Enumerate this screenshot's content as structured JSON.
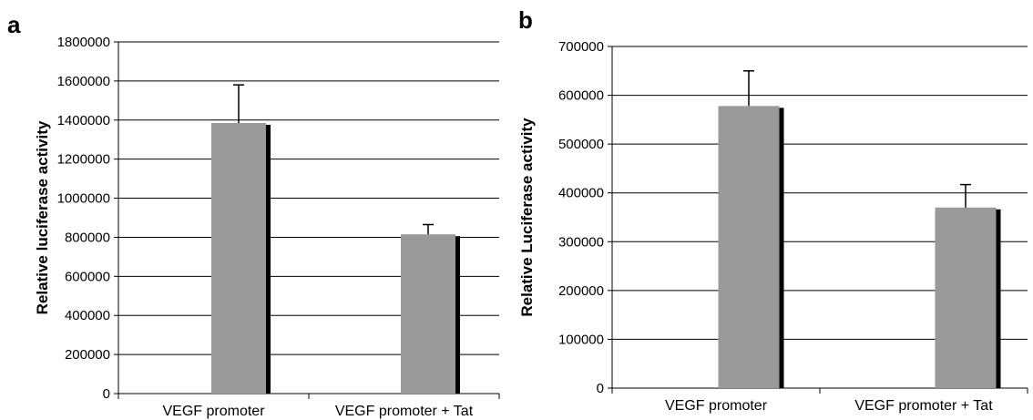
{
  "chart_data": [
    {
      "panel": "a",
      "type": "bar",
      "title": "",
      "xlabel": "",
      "ylabel": "Relative luciferase activity",
      "categories": [
        "VEGF promoter",
        "VEGF promoter + Tat"
      ],
      "series": [
        {
          "values": [
            1385000,
            815000
          ],
          "errors": [
            195000,
            50000
          ]
        }
      ],
      "ylim": [
        0,
        1800000
      ],
      "yticks": [
        "0",
        "200000",
        "400000",
        "600000",
        "800000",
        "1000000",
        "1200000",
        "1400000",
        "1600000",
        "1800000"
      ],
      "grid": true,
      "bar_color": "#999999",
      "shadow_color": "#000000"
    },
    {
      "panel": "b",
      "type": "bar",
      "title": "",
      "xlabel": "",
      "ylabel": "Relative Luciferase activity",
      "categories": [
        "VEGF promoter",
        "VEGF promoter + Tat"
      ],
      "series": [
        {
          "values": [
            578000,
            370000
          ],
          "errors": [
            72000,
            47000
          ]
        }
      ],
      "ylim": [
        0,
        700000
      ],
      "yticks": [
        "0",
        "100000",
        "200000",
        "300000",
        "400000",
        "500000",
        "600000",
        "700000"
      ],
      "grid": true,
      "bar_color": "#999999",
      "shadow_color": "#000000"
    }
  ]
}
